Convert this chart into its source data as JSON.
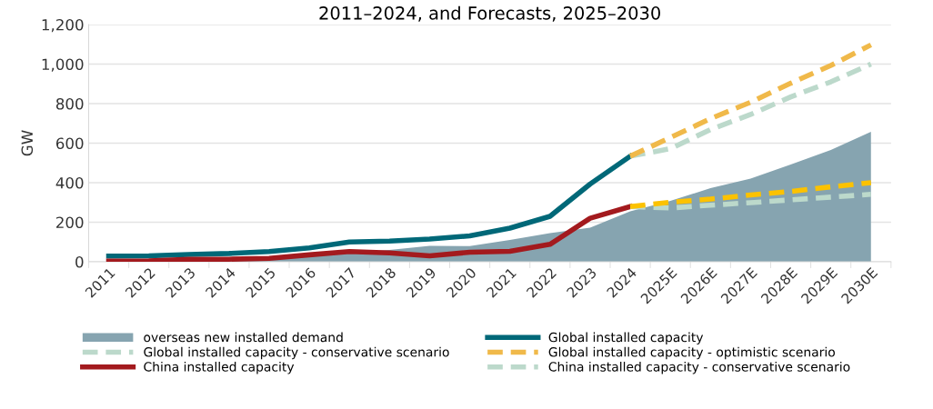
{
  "chart_data": {
    "type": "line",
    "title": "2011–2024, and Forecasts, 2025–2030",
    "ylabel": "GW",
    "categories": [
      "2011",
      "2012",
      "2013",
      "2014",
      "2015",
      "2016",
      "2017",
      "2018",
      "2019",
      "2020",
      "2021",
      "2022",
      "2023",
      "2024",
      "2025E",
      "2026E",
      "2027E",
      "2028E",
      "2029E",
      "2030E"
    ],
    "ylim": [
      0,
      1200
    ],
    "yticks": [
      0,
      {
        "value": 200,
        "label": "200"
      },
      {
        "value": 400,
        "label": "400"
      },
      {
        "value": 600,
        "label": "600"
      },
      {
        "value": 800,
        "label": "800"
      },
      {
        "value": 1000,
        "label": "1,000"
      },
      {
        "value": 1200,
        "label": "1,200"
      }
    ],
    "grid": "y",
    "legend": "bottom",
    "series": [
      {
        "name": "overseas new installed demand",
        "type": "area",
        "color": "#86a4b0",
        "values": [
          15,
          15,
          18,
          18,
          25,
          35,
          45,
          60,
          80,
          79,
          110,
          145,
          172,
          255,
          308,
          372,
          421,
          492,
          566,
          658
        ]
      },
      {
        "name": "Global installed capacity",
        "line_style": "solid",
        "color": "#006878",
        "values": [
          29,
          30,
          37,
          42,
          52,
          70,
          100,
          105,
          115,
          131,
          170,
          230,
          393,
          534,
          null,
          null,
          null,
          null,
          null,
          null
        ]
      },
      {
        "name": "Global installed capacity - conservative scenario",
        "line_style": "dashed",
        "color": "#bcd9cb",
        "values": [
          null,
          null,
          null,
          null,
          null,
          null,
          null,
          null,
          null,
          null,
          null,
          null,
          null,
          534,
          572,
          669,
          745,
          834,
          910,
          1000
        ]
      },
      {
        "name": "Global installed capacity - optimistic scenario",
        "line_style": "dashed",
        "color": "#f0b94a",
        "values": [
          null,
          null,
          null,
          null,
          null,
          null,
          null,
          null,
          null,
          null,
          null,
          null,
          null,
          534,
          628,
          724,
          807,
          903,
          993,
          1097
        ]
      },
      {
        "name": "China installed capacity",
        "line_style": "solid",
        "color": "#a31a1e",
        "values": [
          3,
          5,
          12,
          13,
          17,
          35,
          52,
          45,
          30,
          48,
          53,
          88,
          220,
          279,
          null,
          null,
          null,
          null,
          null,
          null
        ]
      },
      {
        "name": "China installed capacity - conservative scenario",
        "line_style": "dashed",
        "color": "#bcd9cb",
        "values": [
          null,
          null,
          null,
          null,
          null,
          null,
          null,
          null,
          null,
          null,
          null,
          null,
          null,
          279,
          272,
          286,
          299,
          313,
          327,
          341
        ]
      },
      {
        "line_style": "dashed",
        "color": "#fcc200",
        "values": [
          null,
          null,
          null,
          null,
          null,
          null,
          null,
          null,
          null,
          null,
          null,
          null,
          null,
          279,
          301,
          317,
          338,
          356,
          379,
          400
        ]
      }
    ]
  }
}
